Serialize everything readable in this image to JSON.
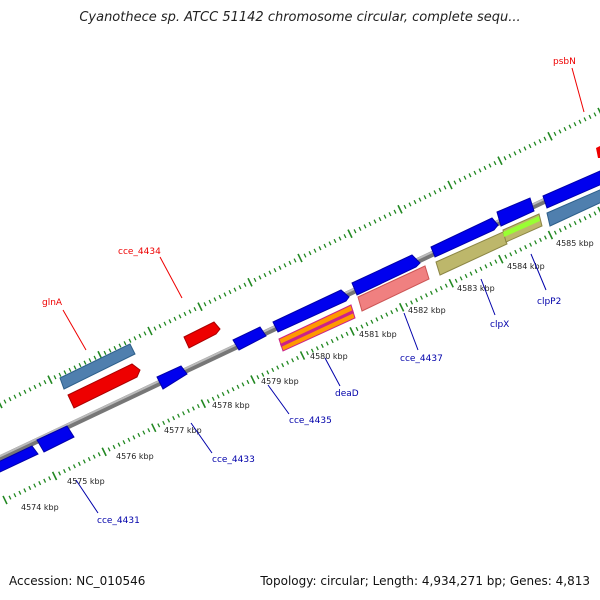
{
  "title": "Cyanothece sp. ATCC 51142 chromosome circular, complete sequ...",
  "colors": {
    "forward_gene": "#0000ee",
    "reverse_label": "#ee0000",
    "forward_label": "#0000aa",
    "tick": "#228822",
    "backbone": "#888888"
  },
  "scale_labels": [
    "4574 kbp",
    "4575 kbp",
    "4576 kbp",
    "4577 kbp",
    "4578 kbp",
    "4579 kbp",
    "4580 kbp",
    "4581 kbp",
    "4582 kbp",
    "4583 kbp",
    "4584 kbp",
    "4585 kbp"
  ],
  "gene_labels_top": [
    {
      "name": "glnA",
      "color": "red"
    },
    {
      "name": "cce_4434",
      "color": "red"
    },
    {
      "name": "psbN",
      "color": "red"
    }
  ],
  "gene_labels_bottom": [
    {
      "name": "cce_4431",
      "color": "blue"
    },
    {
      "name": "cce_4433",
      "color": "blue"
    },
    {
      "name": "cce_4435",
      "color": "blue"
    },
    {
      "name": "deaD",
      "color": "blue"
    },
    {
      "name": "cce_4437",
      "color": "blue"
    },
    {
      "name": "clpX",
      "color": "blue"
    },
    {
      "name": "clpP2",
      "color": "blue"
    }
  ],
  "footer": {
    "accession": "Accession: NC_010546",
    "summary": "Topology: circular; Length: 4,934,271 bp; Genes: 4,813"
  }
}
